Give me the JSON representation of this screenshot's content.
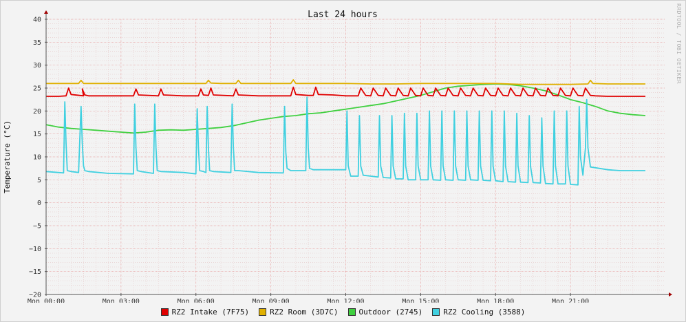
{
  "chart_data": {
    "type": "line",
    "title": "Last 24 hours",
    "ylabel": "Temperature (°C)",
    "watermark": "RRDTOOL / TOBI OETIKER",
    "ylim": [
      -20,
      40
    ],
    "yticks": [
      -20,
      -15,
      -10,
      -5,
      0,
      5,
      10,
      15,
      20,
      25,
      30,
      35,
      40
    ],
    "xlim": [
      0,
      24.8
    ],
    "xticks": [
      {
        "x": 0,
        "label": "Mon 00:00"
      },
      {
        "x": 3,
        "label": "Mon 03:00"
      },
      {
        "x": 6,
        "label": "Mon 06:00"
      },
      {
        "x": 9,
        "label": "Mon 09:00"
      },
      {
        "x": 12,
        "label": "Mon 12:00"
      },
      {
        "x": 15,
        "label": "Mon 15:00"
      },
      {
        "x": 18,
        "label": "Mon 18:00"
      },
      {
        "x": 21,
        "label": "Mon 21:00"
      }
    ],
    "grid": true,
    "legend_position": "bottom",
    "series": [
      {
        "name": "RZ2 Intake (7F75)",
        "color": "#e00000",
        "x": [
          0,
          0.5,
          0.8,
          0.9,
          1.0,
          1.5,
          1.45,
          1.55,
          1.7,
          2.5,
          3.5,
          3.6,
          3.7,
          4.5,
          4.6,
          4.7,
          5.5,
          6.1,
          6.2,
          6.3,
          6.5,
          6.6,
          6.7,
          7.5,
          7.6,
          7.7,
          8.5,
          9.8,
          9.9,
          10.0,
          10.5,
          10.7,
          10.8,
          10.9,
          11.5,
          12.0,
          12.3,
          12.5,
          12.6,
          12.8,
          13.0,
          13.1,
          13.3,
          13.5,
          13.6,
          13.8,
          14.0,
          14.1,
          14.3,
          14.5,
          14.6,
          14.8,
          15.0,
          15.1,
          15.3,
          15.5,
          15.6,
          15.8,
          16.0,
          16.1,
          16.3,
          16.5,
          16.6,
          16.8,
          17.0,
          17.1,
          17.3,
          17.5,
          17.6,
          17.8,
          18.0,
          18.1,
          18.3,
          18.5,
          18.6,
          18.8,
          19.0,
          19.1,
          19.3,
          19.5,
          19.6,
          19.8,
          20.0,
          20.1,
          20.3,
          20.5,
          20.6,
          20.8,
          21.0,
          21.1,
          21.3,
          21.5,
          21.6,
          21.8,
          22.0,
          22.5,
          24.0
        ],
        "values": [
          23.2,
          23.2,
          23.3,
          25.0,
          23.6,
          23.3,
          24.8,
          23.5,
          23.3,
          23.3,
          23.3,
          24.8,
          23.5,
          23.3,
          24.8,
          23.5,
          23.3,
          23.3,
          24.8,
          23.5,
          23.4,
          25.0,
          23.5,
          23.3,
          24.8,
          23.5,
          23.3,
          23.3,
          25.2,
          23.6,
          23.4,
          23.4,
          25.2,
          23.6,
          23.5,
          23.3,
          23.3,
          23.3,
          25.0,
          23.4,
          23.3,
          25.0,
          23.4,
          23.3,
          25.0,
          23.4,
          23.3,
          25.0,
          23.4,
          23.3,
          25.0,
          23.4,
          23.3,
          25.0,
          23.4,
          23.3,
          25.0,
          23.4,
          23.3,
          25.0,
          23.4,
          23.3,
          25.0,
          23.4,
          23.3,
          25.0,
          23.4,
          23.3,
          25.0,
          23.4,
          23.3,
          25.0,
          23.4,
          23.3,
          25.0,
          23.4,
          23.3,
          25.0,
          23.4,
          23.3,
          25.0,
          23.4,
          23.3,
          25.0,
          23.4,
          23.3,
          25.0,
          23.4,
          23.3,
          25.0,
          23.4,
          23.3,
          25.0,
          23.4,
          23.3,
          23.2,
          23.2
        ]
      },
      {
        "name": "RZ2 Room (3D7C)",
        "color": "#e0b000",
        "x": [
          0,
          1.3,
          1.4,
          1.5,
          3.0,
          4.0,
          5.5,
          6.4,
          6.5,
          6.6,
          7.0,
          7.6,
          7.7,
          7.8,
          9.0,
          9.8,
          9.9,
          10.0,
          11.0,
          12.0,
          13.0,
          14.0,
          15.0,
          16.0,
          17.0,
          18.0,
          19.0,
          20.0,
          21.0,
          21.7,
          21.8,
          21.9,
          22.5,
          24.0
        ],
        "values": [
          26.0,
          26.0,
          26.7,
          26.0,
          26.0,
          26.0,
          26.0,
          26.0,
          26.7,
          26.1,
          26.0,
          26.0,
          26.7,
          26.0,
          26.0,
          26.0,
          26.8,
          26.0,
          26.0,
          26.0,
          25.9,
          25.9,
          26.0,
          26.0,
          26.0,
          26.0,
          25.8,
          25.8,
          25.8,
          25.9,
          26.7,
          26.0,
          25.9,
          25.9
        ]
      },
      {
        "name": "Outdoor (2745)",
        "color": "#40d040",
        "x": [
          0,
          0.5,
          1.0,
          1.5,
          2.0,
          2.5,
          3.0,
          3.5,
          4.0,
          4.5,
          5.0,
          5.5,
          6.0,
          6.5,
          7.0,
          7.5,
          8.0,
          8.5,
          9.0,
          9.5,
          10.0,
          10.5,
          11.0,
          11.5,
          12.0,
          12.5,
          13.0,
          13.5,
          14.0,
          14.5,
          15.0,
          15.5,
          16.0,
          16.5,
          17.0,
          17.5,
          18.0,
          18.5,
          19.0,
          19.5,
          20.0,
          20.5,
          21.0,
          21.5,
          22.0,
          22.5,
          23.0,
          23.5,
          24.0
        ],
        "values": [
          17.0,
          16.5,
          16.2,
          16.0,
          15.8,
          15.6,
          15.4,
          15.2,
          15.4,
          15.8,
          15.9,
          15.8,
          16.0,
          16.2,
          16.4,
          16.8,
          17.4,
          18.0,
          18.4,
          18.8,
          19.0,
          19.4,
          19.6,
          20.0,
          20.4,
          20.8,
          21.2,
          21.6,
          22.2,
          22.8,
          23.4,
          24.2,
          25.0,
          25.4,
          25.6,
          25.8,
          25.9,
          25.8,
          25.5,
          25.0,
          24.4,
          23.5,
          22.5,
          21.8,
          21.0,
          20.0,
          19.5,
          19.2,
          19.0
        ]
      },
      {
        "name": "RZ2 Cooling (3588)",
        "color": "#40d0e0",
        "x": [
          0,
          0.7,
          0.75,
          0.8,
          0.85,
          1.0,
          1.3,
          1.4,
          1.45,
          1.5,
          1.55,
          1.7,
          2.5,
          3.5,
          3.55,
          3.6,
          3.65,
          3.8,
          4.3,
          4.35,
          4.4,
          4.45,
          4.6,
          5.5,
          6.0,
          6.05,
          6.1,
          6.15,
          6.3,
          6.4,
          6.45,
          6.5,
          6.55,
          6.7,
          7.4,
          7.45,
          7.5,
          7.55,
          7.7,
          8.5,
          9.5,
          9.55,
          9.6,
          9.65,
          9.8,
          10.4,
          10.45,
          10.5,
          10.55,
          10.7,
          11.5,
          12.0,
          12.05,
          12.1,
          12.2,
          12.5,
          12.55,
          12.6,
          12.7,
          13.0,
          13.3,
          13.35,
          13.4,
          13.5,
          13.8,
          13.85,
          13.9,
          14.0,
          14.3,
          14.35,
          14.4,
          14.5,
          14.8,
          14.85,
          14.9,
          15.0,
          15.3,
          15.35,
          15.4,
          15.5,
          15.8,
          15.85,
          15.9,
          16.0,
          16.3,
          16.35,
          16.4,
          16.5,
          16.8,
          16.85,
          16.9,
          17.0,
          17.3,
          17.35,
          17.4,
          17.5,
          17.8,
          17.85,
          17.9,
          18.0,
          18.3,
          18.35,
          18.4,
          18.5,
          18.8,
          18.85,
          18.9,
          19.0,
          19.3,
          19.35,
          19.4,
          19.5,
          19.8,
          19.85,
          19.9,
          20.0,
          20.3,
          20.35,
          20.4,
          20.5,
          20.8,
          20.85,
          20.9,
          21.0,
          21.3,
          21.35,
          21.4,
          21.5,
          21.6,
          21.65,
          21.7,
          21.8,
          22.5,
          23.0,
          24.0
        ],
        "values": [
          6.8,
          6.5,
          22.0,
          13.0,
          7.0,
          6.8,
          6.6,
          21.0,
          13.0,
          8.0,
          7.0,
          6.8,
          6.4,
          6.3,
          21.5,
          12.0,
          7.0,
          6.8,
          6.4,
          21.5,
          12.0,
          7.0,
          6.8,
          6.6,
          6.3,
          20.5,
          12.0,
          7.0,
          6.8,
          6.6,
          21.0,
          12.0,
          7.0,
          6.8,
          6.6,
          21.5,
          12.0,
          7.0,
          7.0,
          6.6,
          6.5,
          21.0,
          11.0,
          7.5,
          7.0,
          7.0,
          23.0,
          12.0,
          7.5,
          7.2,
          7.2,
          7.2,
          20.0,
          8.0,
          5.8,
          5.8,
          19.0,
          8.0,
          6.0,
          5.8,
          5.6,
          19.0,
          8.0,
          5.5,
          5.4,
          19.0,
          8.0,
          5.2,
          5.2,
          19.5,
          8.0,
          5.0,
          5.0,
          19.5,
          8.0,
          5.0,
          5.0,
          20.0,
          8.0,
          5.0,
          4.9,
          20.0,
          8.0,
          5.0,
          4.9,
          20.0,
          8.0,
          5.0,
          4.9,
          20.0,
          8.0,
          5.0,
          4.9,
          20.0,
          8.0,
          4.9,
          4.8,
          20.0,
          8.0,
          4.8,
          4.6,
          20.0,
          8.0,
          4.6,
          4.5,
          19.5,
          8.0,
          4.5,
          4.4,
          19.0,
          8.0,
          4.4,
          4.3,
          18.5,
          8.0,
          4.2,
          4.1,
          20.0,
          8.0,
          4.1,
          4.1,
          20.0,
          8.0,
          4.0,
          3.9,
          21.0,
          10.0,
          6.0,
          12.0,
          22.5,
          12.0,
          7.8,
          7.2,
          7.0,
          7.0
        ]
      }
    ]
  }
}
